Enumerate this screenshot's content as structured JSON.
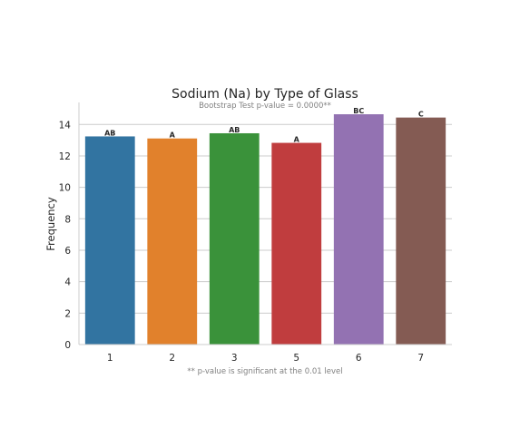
{
  "chart_data": {
    "type": "bar",
    "title": "Sodium (Na) by Type of Glass",
    "subtitle": "Bootstrap Test p-value = 0.0000**",
    "xlabel": "",
    "ylabel": "Frequency",
    "footnote": "** p-value is significant at the 0.01 level",
    "categories": [
      "1",
      "2",
      "3",
      "5",
      "6",
      "7"
    ],
    "values": [
      13.24,
      13.11,
      13.44,
      12.83,
      14.65,
      14.44
    ],
    "group_labels": [
      "AB",
      "A",
      "AB",
      "A",
      "BC",
      "C"
    ],
    "colors": [
      "#3274a1",
      "#e1812c",
      "#3a923a",
      "#c03d3e",
      "#9372b2",
      "#845b53"
    ],
    "ylim": [
      0,
      15.4
    ],
    "yticks": [
      "0",
      "2",
      "4",
      "6",
      "8",
      "10",
      "12",
      "14"
    ],
    "grid": "horizontal",
    "legend": "none"
  }
}
